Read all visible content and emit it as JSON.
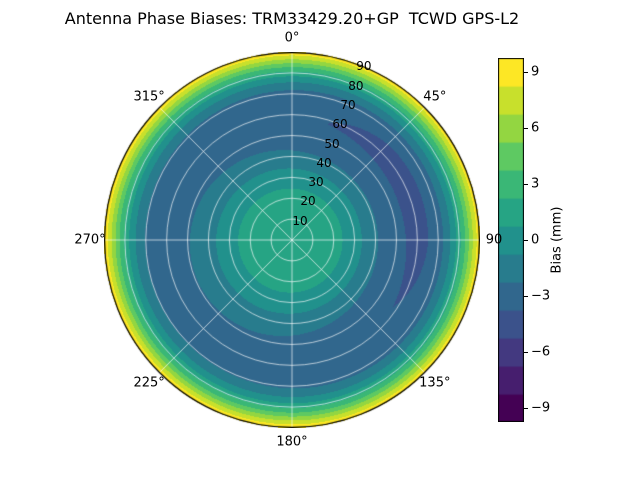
{
  "chart_data": {
    "type": "heatmap",
    "plot_style": "polar-filled-contour",
    "title": "Antenna Phase Biases: TRM33429.20+GP  TCWD GPS-L2",
    "angular_axis": {
      "unit": "degrees-azimuth",
      "tick_labels": [
        {
          "angle_deg": 0,
          "text": "0°"
        },
        {
          "angle_deg": 45,
          "text": "45°"
        },
        {
          "angle_deg": 90,
          "text": "90"
        },
        {
          "angle_deg": 135,
          "text": "135°"
        },
        {
          "angle_deg": 180,
          "text": "180°"
        },
        {
          "angle_deg": 225,
          "text": "225°"
        },
        {
          "angle_deg": 270,
          "text": "270°"
        },
        {
          "angle_deg": 315,
          "text": "315°"
        }
      ]
    },
    "radial_axis": {
      "unit": "degrees-zenith",
      "max_deg": 90,
      "label_azimuth_deg": 22.5,
      "tick_labels": [
        {
          "zenith_deg": 10,
          "text": "10"
        },
        {
          "zenith_deg": 20,
          "text": "20"
        },
        {
          "zenith_deg": 30,
          "text": "30"
        },
        {
          "zenith_deg": 40,
          "text": "40"
        },
        {
          "zenith_deg": 50,
          "text": "50"
        },
        {
          "zenith_deg": 60,
          "text": "60"
        },
        {
          "zenith_deg": 70,
          "text": "70"
        },
        {
          "zenith_deg": 80,
          "text": "80"
        },
        {
          "zenith_deg": 90,
          "text": "90"
        }
      ]
    },
    "values": {
      "vmin": -9.75,
      "vmax": 9.75,
      "contour_interval_mm": 1.5,
      "n_bands": 13
    },
    "radial_profile": {
      "zenith_deg": [
        0,
        10,
        20,
        28,
        35,
        42,
        50,
        58,
        65,
        70,
        74,
        78,
        82,
        86,
        90
      ],
      "bias_mm": [
        1.9,
        1.8,
        1.3,
        0.4,
        -0.8,
        -2.0,
        -2.9,
        -3.4,
        -3.3,
        -2.7,
        -1.4,
        0.6,
        3.2,
        6.4,
        9.6
      ]
    },
    "azimuthal_variation": {
      "amplitude_mm": 0.6,
      "deepest_azimuth_deg": 70,
      "center_zenith_deg": 55,
      "sigma_deg": 22
    },
    "colorbar": {
      "label": "Bias (mm)",
      "tick_values": [
        9,
        6,
        3,
        0,
        -3,
        -6,
        -9
      ],
      "tick_labels": [
        "9",
        "6",
        "3",
        "0",
        "−3",
        "−6",
        "−9"
      ]
    },
    "colormap": {
      "name": "viridis",
      "stops": [
        [
          0.0,
          "#440154"
        ],
        [
          0.125,
          "#472d7b"
        ],
        [
          0.25,
          "#3b528b"
        ],
        [
          0.375,
          "#2c728e"
        ],
        [
          0.5,
          "#21918c"
        ],
        [
          0.625,
          "#28ae80"
        ],
        [
          0.75,
          "#5ec962"
        ],
        [
          0.875,
          "#addc30"
        ],
        [
          1.0,
          "#fde725"
        ]
      ]
    },
    "grid": {
      "color": "rgba(255,255,255,0.75)",
      "outline_color": "#000000",
      "spoke_angles_deg": [
        0,
        45,
        90,
        135,
        180,
        225,
        270,
        315
      ],
      "circle_zenith_deg": [
        10,
        20,
        30,
        40,
        50,
        60,
        70,
        80
      ]
    }
  }
}
